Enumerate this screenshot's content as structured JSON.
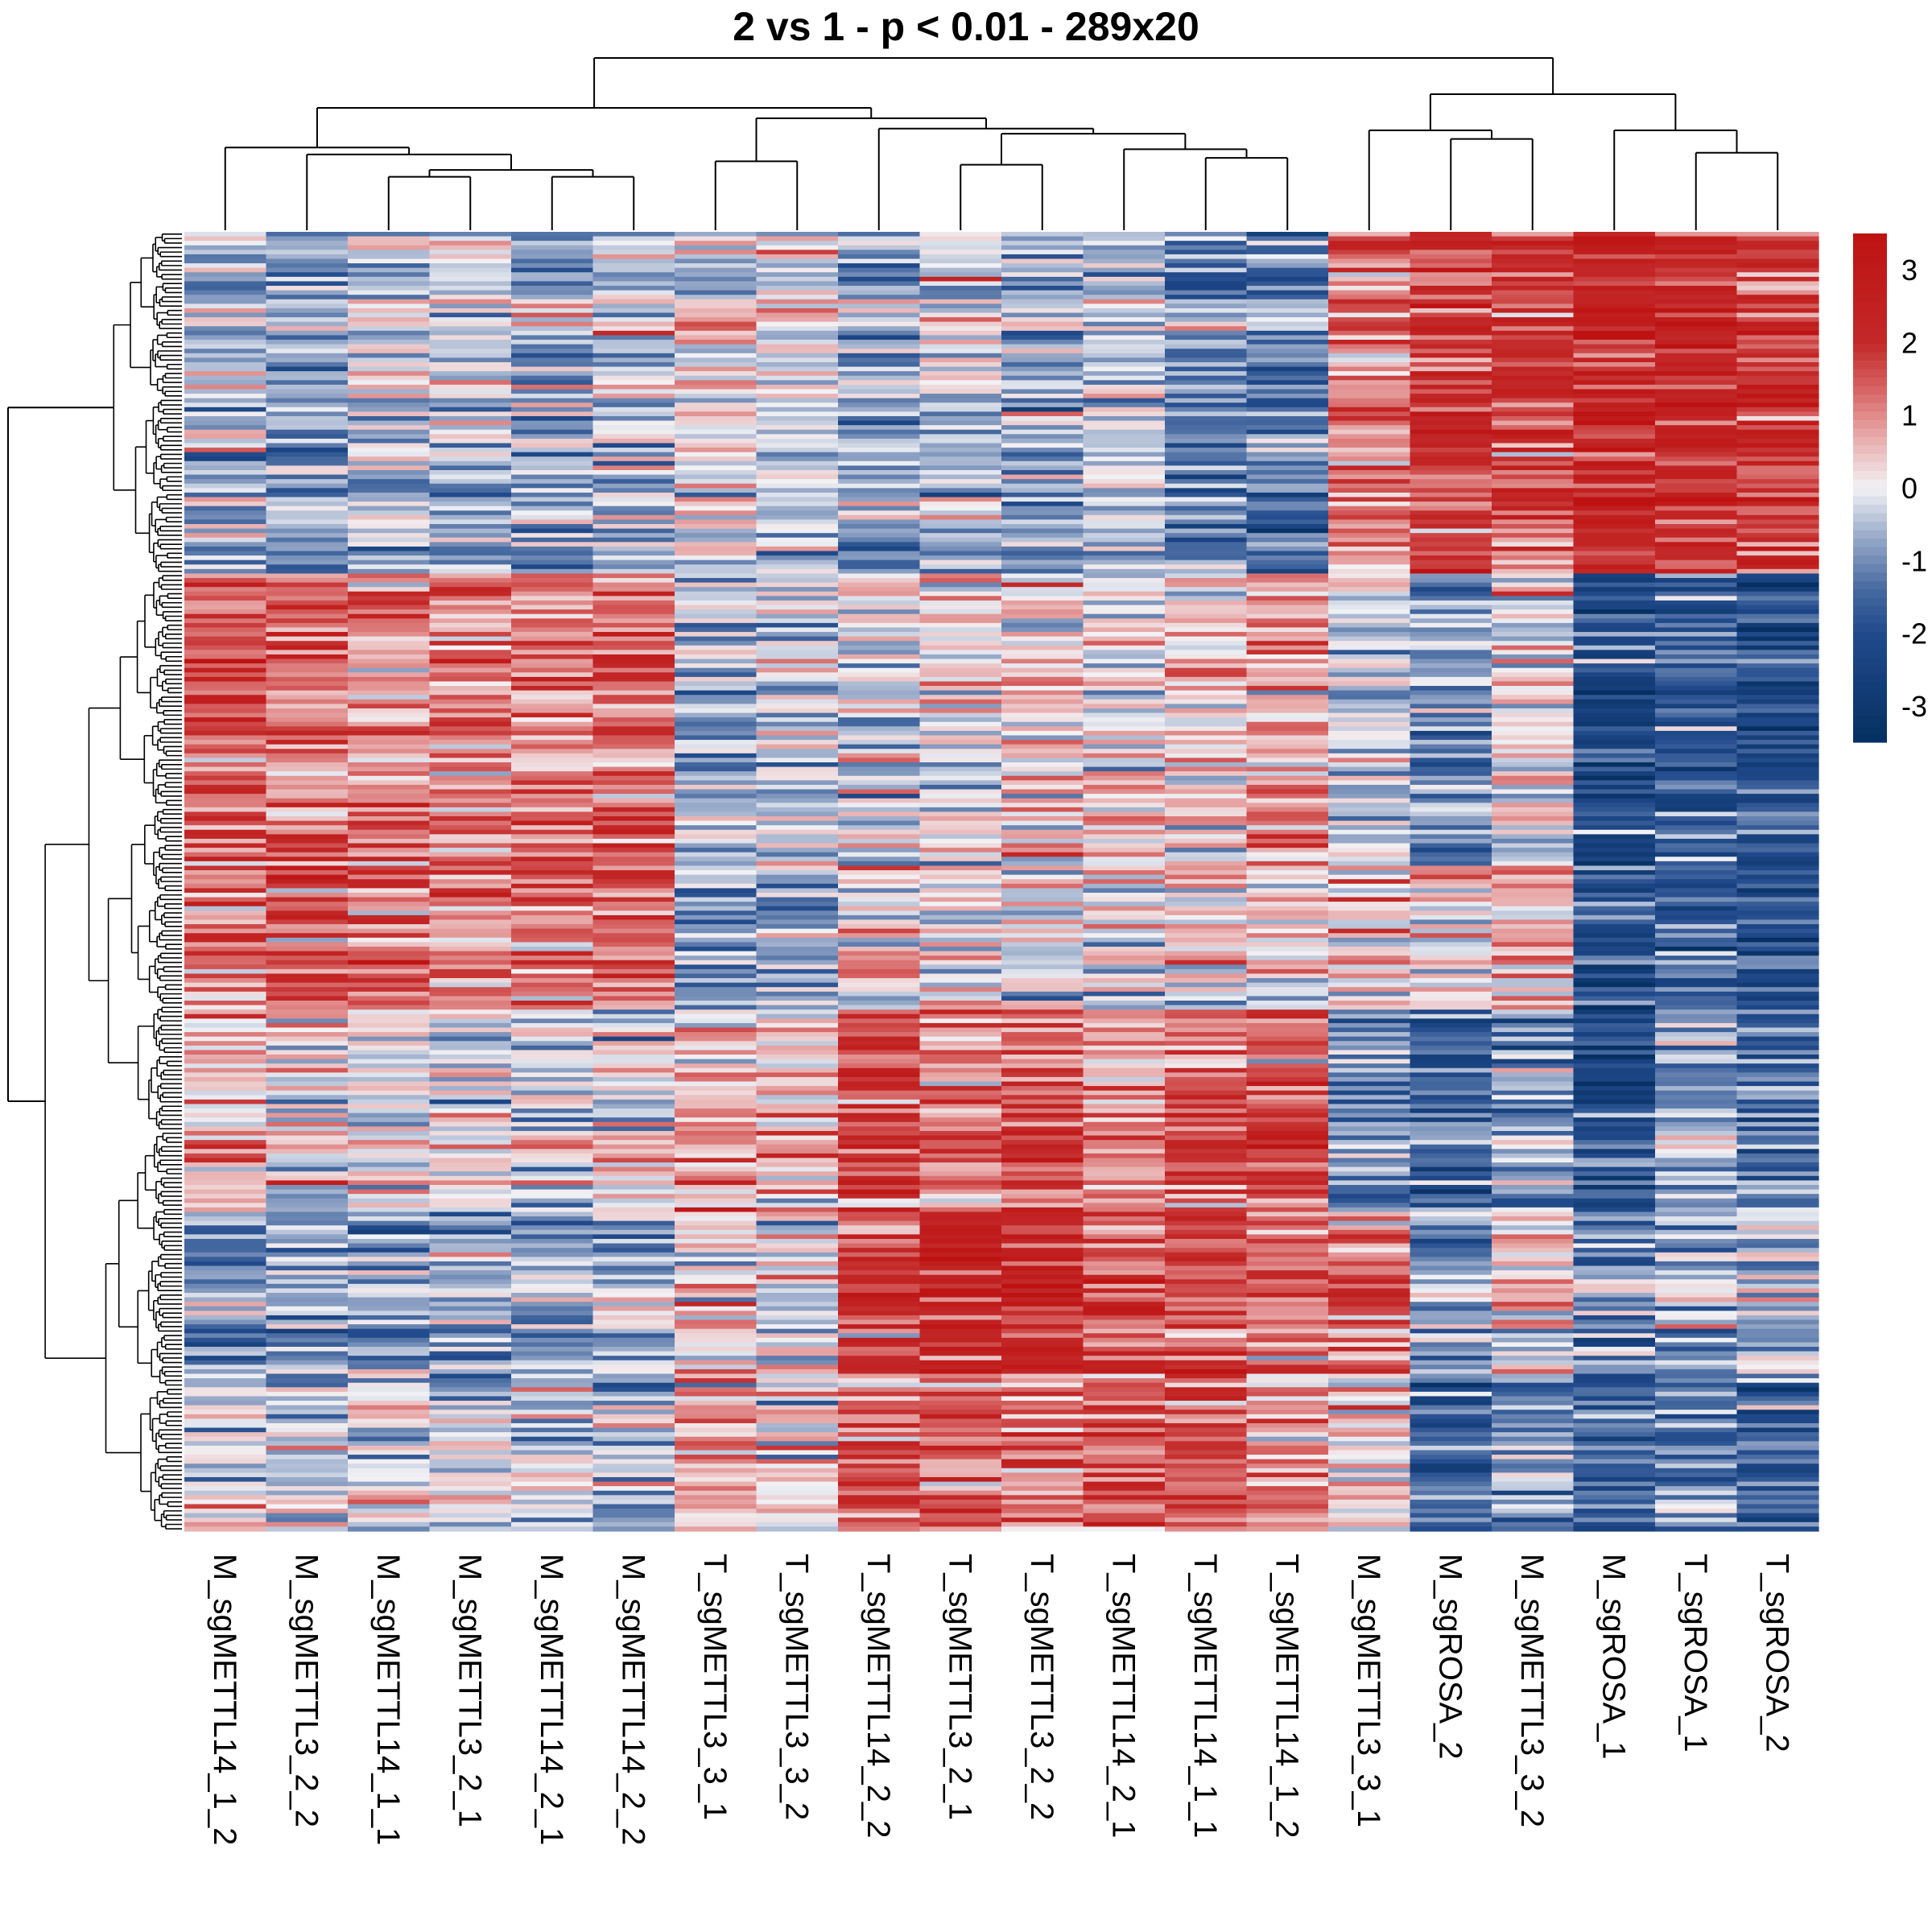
{
  "chart_data": {
    "type": "heatmap",
    "title": "2 vs 1 - p < 0.01 - 289x20",
    "n_rows": 289,
    "n_cols": 20,
    "columns": [
      "M_sgMETTL14_1_2",
      "M_sgMETTL3_2_2",
      "M_sgMETTL14_1_1",
      "M_sgMETTL3_2_1",
      "M_sgMETTL14_2_1",
      "M_sgMETTL14_2_2",
      "T_sgMETTL3_3_1",
      "T_sgMETTL3_3_2",
      "T_sgMETTL14_2_2",
      "T_sgMETTL3_2_1",
      "T_sgMETTL3_2_2",
      "T_sgMETTL14_2_1",
      "T_sgMETTL14_1_1",
      "T_sgMETTL14_1_2",
      "M_sgMETTL3_3_1",
      "M_sgROSA_2",
      "M_sgMETTL3_3_2",
      "M_sgROSA_1",
      "T_sgROSA_1",
      "T_sgROSA_2"
    ],
    "row_labels_shown": false,
    "legend": {
      "type": "colorbar",
      "position": "right",
      "ticks": [
        3,
        2,
        1,
        0,
        -1,
        -2,
        -3
      ],
      "range": [
        -3.5,
        3.5
      ],
      "colors": {
        "low": "#053061",
        "mid_low": "#4A6FA5",
        "mid": "#F2F2F5",
        "mid_high": "#DC6B6B",
        "high": "#BF1212"
      }
    },
    "column_dendrogram": {
      "merge_order_note": "hierarchical clustering of 20 samples",
      "merges": [
        [
          3,
          4,
          0.25
        ],
        [
          5,
          6,
          0.25
        ],
        [
          "a",
          "b",
          0.3
        ],
        [
          2,
          "c",
          0.4
        ],
        [
          1,
          "d",
          0.45
        ],
        [
          7,
          8,
          0.42
        ],
        [
          10,
          11,
          0.35
        ],
        [
          13,
          14,
          0.4
        ],
        [
          12,
          "h",
          0.45
        ],
        [
          "g",
          "i",
          0.5
        ],
        [
          9,
          "j",
          0.53
        ],
        [
          "f",
          "k",
          0.6
        ],
        [
          "e",
          "l",
          0.68
        ],
        [
          17,
          18,
          0.45
        ],
        [
          16,
          "n",
          0.55
        ],
        [
          20,
          19,
          0.38
        ],
        [
          19.5,
          "p",
          0.5
        ],
        [
          "o",
          "q",
          0.62
        ],
        [
          "m",
          "r",
          1.0
        ]
      ]
    },
    "row_blocks": [
      {
        "rows": 76,
        "means": [
          -0.5,
          -0.8,
          -0.4,
          -0.4,
          -0.6,
          -0.4,
          0.0,
          -0.2,
          -1.0,
          -0.4,
          -0.7,
          -0.4,
          -1.2,
          -1.2,
          1.0,
          1.8,
          1.6,
          2.3,
          2.3,
          1.8
        ]
      },
      {
        "rows": 65,
        "means": [
          1.6,
          1.3,
          1.1,
          1.2,
          1.0,
          1.2,
          -0.5,
          -0.3,
          -0.2,
          0.1,
          0.3,
          0.2,
          0.4,
          0.7,
          -0.2,
          -0.8,
          0.2,
          -2.2,
          -1.8,
          -2.0
        ]
      },
      {
        "rows": 32,
        "means": [
          1.2,
          1.4,
          1.2,
          1.1,
          1.1,
          1.4,
          -0.8,
          -1.0,
          0.3,
          0.1,
          -0.1,
          0.1,
          0.2,
          0.2,
          0.3,
          0.5,
          0.6,
          -2.0,
          -1.6,
          -2.1
        ]
      },
      {
        "rows": 45,
        "means": [
          0.6,
          0.2,
          0.0,
          0.0,
          -0.3,
          0.1,
          0.8,
          0.5,
          1.8,
          1.2,
          1.3,
          1.0,
          1.4,
          1.6,
          -1.0,
          -1.5,
          -0.9,
          -2.2,
          -0.8,
          -1.4
        ]
      },
      {
        "rows": 36,
        "means": [
          -0.9,
          -0.9,
          -0.9,
          -0.9,
          -0.9,
          -0.7,
          0.0,
          -0.2,
          1.6,
          2.3,
          2.2,
          1.3,
          1.6,
          1.2,
          1.0,
          -0.9,
          0.3,
          -0.9,
          -0.8,
          -0.6
        ]
      },
      {
        "rows": 35,
        "means": [
          0.0,
          -0.3,
          0.1,
          -0.1,
          -0.3,
          -0.3,
          0.6,
          0.2,
          1.4,
          1.4,
          1.2,
          1.5,
          1.7,
          1.0,
          0.4,
          -1.6,
          -0.8,
          -1.4,
          -1.0,
          -1.4
        ]
      }
    ],
    "noise_sd": 0.9,
    "seed": 1337
  }
}
